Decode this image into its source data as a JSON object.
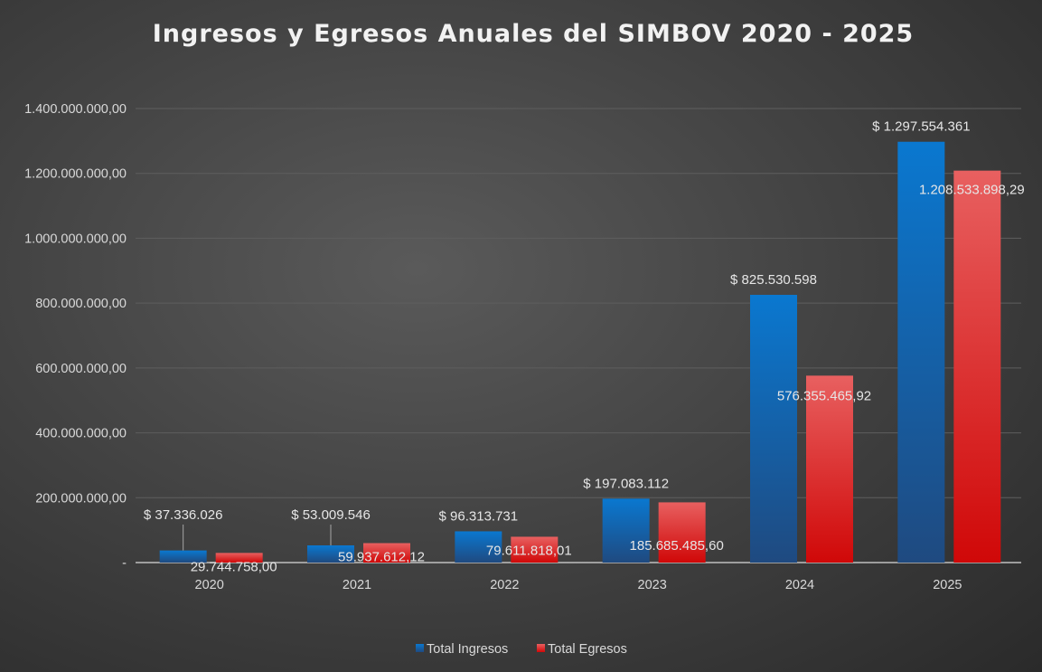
{
  "chart_data": {
    "type": "bar",
    "title": "Ingresos y Egresos Anuales del SIMBOV 2020 - 2025",
    "xlabel": "",
    "ylabel": "",
    "ylim": [
      0,
      1400000000
    ],
    "grid": true,
    "legend_position": "bottom",
    "categories": [
      "2020",
      "2021",
      "2022",
      "2023",
      "2024",
      "2025"
    ],
    "yticks": [
      0,
      200000000,
      400000000,
      600000000,
      800000000,
      1000000000,
      1200000000,
      1400000000
    ],
    "ytick_labels": [
      "-",
      "200.000.000,00",
      "400.000.000,00",
      "600.000.000,00",
      "800.000.000,00",
      "1.000.000.000,00",
      "1.200.000.000,00",
      "1.400.000.000,00"
    ],
    "series": [
      {
        "name": "Total Ingresos",
        "color": "#0070c0",
        "values": [
          37336026,
          53009546,
          96313731,
          197083112,
          825530598,
          1297554361
        ],
        "labels": [
          "$ 37.336.026",
          "$ 53.009.546",
          "$ 96.313.731",
          "$ 197.083.112",
          "$ 825.530.598",
          "$ 1.297.554.361"
        ]
      },
      {
        "name": "Total Egresos",
        "color": "#e03030",
        "values": [
          29744758.0,
          59937612.12,
          79611818.01,
          185685485.6,
          576355465.92,
          1208533898.29
        ],
        "labels": [
          "29.744.758,00",
          "59.937.612,12",
          "79.611.818,01",
          "185.685.485,60",
          "576.355.465,92",
          "1.208.533.898,29"
        ]
      }
    ]
  }
}
